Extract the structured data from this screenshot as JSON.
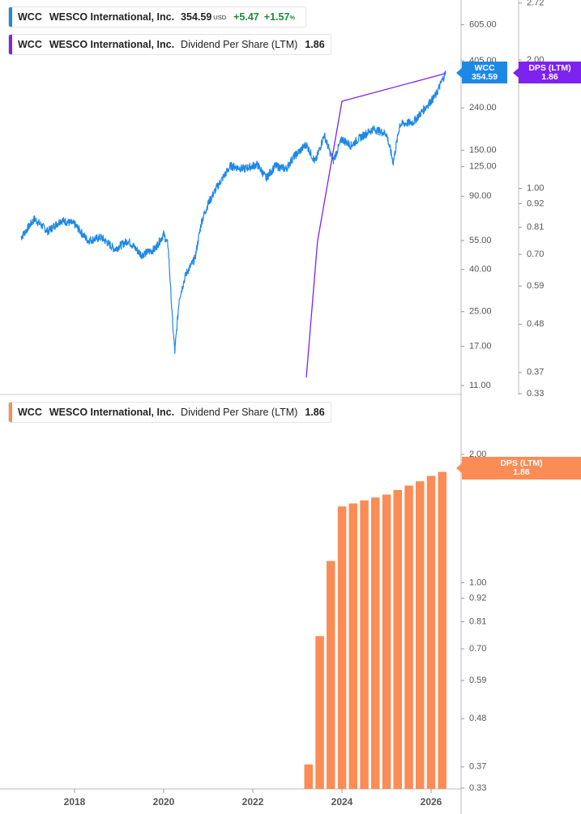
{
  "colors": {
    "price_line": "#1e88e5",
    "dps_line": "#7e22f0",
    "bar_fill": "#fb8c55",
    "axis_text": "#555555",
    "positive": "#1e8a3c"
  },
  "legend_top": {
    "ticker": "WCC",
    "company": "WESCO International, Inc.",
    "price": "354.59",
    "currency": "USD",
    "change": "+5.47",
    "change_pct": "+1.57",
    "pct_sign": "%"
  },
  "legend_dps": {
    "ticker": "WCC",
    "company": "WESCO International, Inc.",
    "metric": "Dividend Per Share (LTM)",
    "value": "1.86"
  },
  "legend_bottom": {
    "ticker": "WCC",
    "company": "WESCO International, Inc.",
    "metric": "Dividend Per Share (LTM)",
    "value": "1.86"
  },
  "tags": {
    "wcc": {
      "name": "WCC",
      "value": "354.59"
    },
    "dps_top": {
      "name": "DPS (LTM)",
      "value": "1.86"
    },
    "dps_bottom": {
      "name": "DPS (LTM)",
      "value": "1.86"
    }
  },
  "chart_data": [
    {
      "type": "line",
      "scale": "log",
      "series": [
        {
          "name": "WCC",
          "axis": "left",
          "x": [
            2016.8,
            2017.1,
            2017.4,
            2017.7,
            2018.0,
            2018.3,
            2018.6,
            2018.9,
            2019.2,
            2019.5,
            2019.8,
            2020.0,
            2020.1,
            2020.2,
            2020.25,
            2020.35,
            2020.5,
            2020.7,
            2020.85,
            2021.0,
            2021.2,
            2021.5,
            2021.8,
            2022.1,
            2022.3,
            2022.5,
            2022.75,
            2022.9,
            2023.2,
            2023.4,
            2023.6,
            2023.8,
            2024.0,
            2024.2,
            2024.4,
            2024.7,
            2025.0,
            2025.15,
            2025.3,
            2025.6,
            2025.9,
            2026.1,
            2026.3,
            2026.33
          ],
          "y": [
            57,
            70,
            61,
            69,
            66,
            55,
            57,
            50,
            55,
            47,
            50,
            59,
            52,
            22,
            16,
            29,
            38,
            45,
            68,
            83,
            100,
            126,
            122,
            128,
            110,
            126,
            122,
            138,
            160,
            131,
            178,
            133,
            170,
            158,
            172,
            190,
            180,
            131,
            200,
            205,
            245,
            275,
            345,
            354.59
          ]
        },
        {
          "name": "DPS (LTM)",
          "axis": "right",
          "x": [
            2023.2,
            2023.45,
            2024.0,
            2026.33
          ],
          "y": [
            0.36,
            0.75,
            1.6,
            1.86
          ]
        }
      ],
      "left_axis_ticks": [
        "605.00",
        "405.00",
        "240.00",
        "150.00",
        "125.00",
        "90.00",
        "55.00",
        "40.00",
        "25.00",
        "17.00",
        "11.00"
      ],
      "right_axis_ticks": [
        "2.72",
        "2.00",
        "1.00",
        "0.92",
        "0.81",
        "0.70",
        "0.59",
        "0.48",
        "0.37",
        "0.33"
      ]
    },
    {
      "type": "bar",
      "scale": "log",
      "series": [
        {
          "name": "Dividend Per Share (LTM)",
          "x": [
            2023.25,
            2023.5,
            2023.75,
            2024.0,
            2024.25,
            2024.5,
            2024.75,
            2025.0,
            2025.25,
            2025.5,
            2025.75,
            2026.0,
            2026.25
          ],
          "values": [
            0.375,
            0.75,
            1.125,
            1.51,
            1.535,
            1.56,
            1.585,
            1.61,
            1.65,
            1.69,
            1.73,
            1.78,
            1.82
          ]
        }
      ],
      "y_axis_ticks": [
        "2.00",
        "1.00",
        "0.92",
        "0.81",
        "0.70",
        "0.59",
        "0.48",
        "0.37",
        "0.33"
      ],
      "x_axis_ticks": [
        "2018",
        "2020",
        "2022",
        "2024",
        "2026"
      ]
    }
  ]
}
